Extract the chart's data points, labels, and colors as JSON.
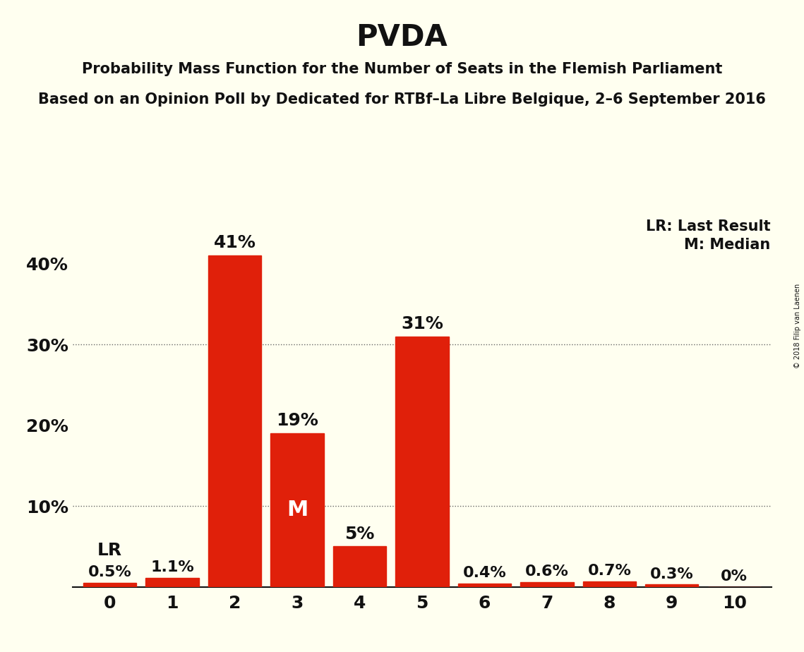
{
  "title": "PVDA",
  "subtitle1": "Probability Mass Function for the Number of Seats in the Flemish Parliament",
  "subtitle2": "Based on an Opinion Poll by Dedicated for RTBf–La Libre Belgique, 2–6 September 2016",
  "watermark": "© 2018 Filip van Laenen",
  "categories": [
    0,
    1,
    2,
    3,
    4,
    5,
    6,
    7,
    8,
    9,
    10
  ],
  "values": [
    0.5,
    1.1,
    41.0,
    19.0,
    5.0,
    31.0,
    0.4,
    0.6,
    0.7,
    0.3,
    0.0
  ],
  "bar_color": "#e0200a",
  "background_color": "#fffff0",
  "bar_labels": [
    "0.5%",
    "1.1%",
    "41%",
    "19%",
    "5%",
    "31%",
    "0.4%",
    "0.6%",
    "0.7%",
    "0.3%",
    "0%"
  ],
  "last_result_seat": 0,
  "median_seat": 3,
  "lr_label": "LR",
  "m_label": "M",
  "legend_lr": "LR: Last Result",
  "legend_m": "M: Median",
  "ylabel_ticks": [
    0,
    10,
    20,
    30,
    40
  ],
  "ylabel_labels": [
    "",
    "10%",
    "20%",
    "30%",
    "40%"
  ],
  "ylim": [
    0,
    46
  ],
  "title_fontsize": 30,
  "subtitle_fontsize": 15,
  "axis_label_fontsize": 18,
  "bar_label_fontsize": 16,
  "legend_fontsize": 15,
  "grid_color": "#666666",
  "text_color": "#111111",
  "watermark_fontsize": 7
}
